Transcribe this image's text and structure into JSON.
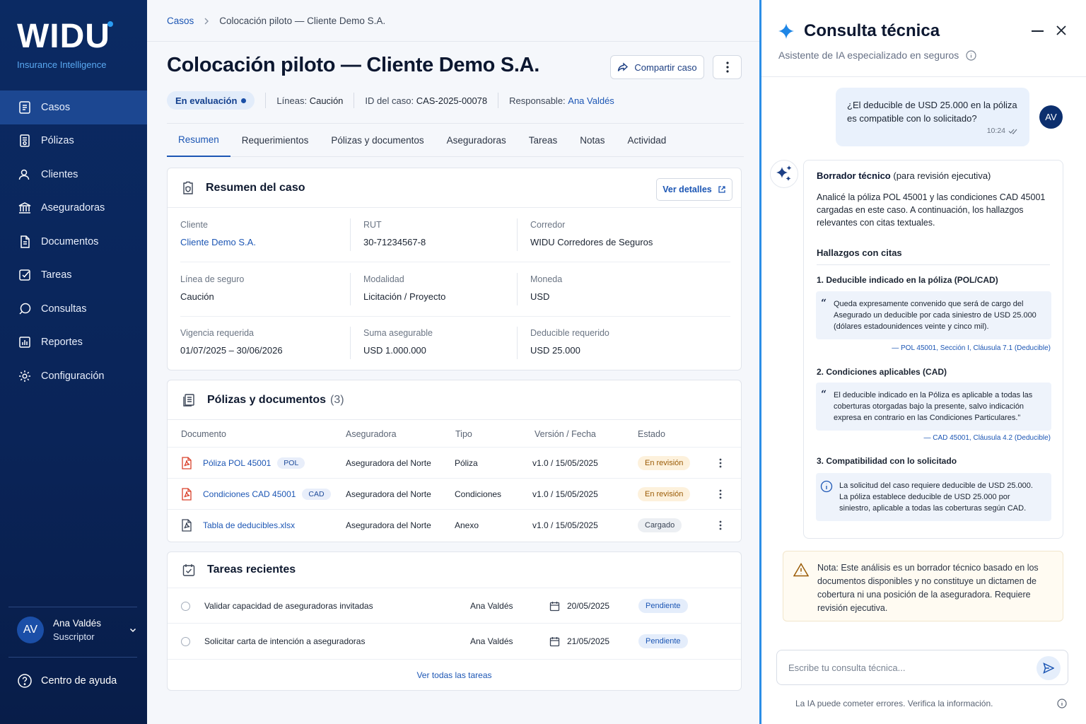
{
  "brand": {
    "name": "WIDU",
    "tagline": "Insurance Intelligence"
  },
  "sidebar": {
    "items": [
      {
        "label": "Casos",
        "icon": "cases-icon",
        "active": true
      },
      {
        "label": "Pólizas",
        "icon": "policies-icon"
      },
      {
        "label": "Clientes",
        "icon": "clients-icon"
      },
      {
        "label": "Aseguradoras",
        "icon": "insurers-icon"
      },
      {
        "label": "Documentos",
        "icon": "documents-icon"
      },
      {
        "label": "Tareas",
        "icon": "tasks-icon"
      },
      {
        "label": "Consultas",
        "icon": "chat-icon"
      },
      {
        "label": "Reportes",
        "icon": "reports-icon"
      },
      {
        "label": "Configuración",
        "icon": "gear-icon"
      }
    ],
    "user": {
      "initials": "AV",
      "name": "Ana Valdés",
      "role": "Suscriptor"
    },
    "help": "Centro de ayuda"
  },
  "breadcrumb": {
    "root": "Casos",
    "current": "Colocación piloto — Cliente Demo S.A."
  },
  "header": {
    "title": "Colocación piloto — Cliente Demo S.A.",
    "share": "Compartir caso",
    "status": "En evaluación",
    "lines_label": "Líneas:",
    "lines_value": "Caución",
    "id_label": "ID del caso:",
    "id_value": "CAS-2025-00078",
    "owner_label": "Responsable:",
    "owner_value": "Ana Valdés"
  },
  "tabs": [
    "Resumen",
    "Requerimientos",
    "Pólizas y documentos",
    "Aseguradoras",
    "Tareas",
    "Notas",
    "Actividad"
  ],
  "summary": {
    "title": "Resumen del caso",
    "details_btn": "Ver detalles",
    "fields": [
      {
        "label": "Cliente",
        "value": "Cliente Demo S.A.",
        "link": true
      },
      {
        "label": "RUT",
        "value": "30-71234567-8"
      },
      {
        "label": "Corredor",
        "value": "WIDU Corredores de Seguros"
      },
      {
        "label": "Línea de seguro",
        "value": "Caución"
      },
      {
        "label": "Modalidad",
        "value": "Licitación / Proyecto"
      },
      {
        "label": "Moneda",
        "value": "USD"
      },
      {
        "label": "Vigencia requerida",
        "value": "01/07/2025 – 30/06/2026"
      },
      {
        "label": "Suma asegurable",
        "value": "USD 1.000.000"
      },
      {
        "label": "Deducible requerido",
        "value": "USD 25.000"
      }
    ]
  },
  "documents": {
    "title": "Pólizas y documentos",
    "count": "(3)",
    "columns": [
      "Documento",
      "Aseguradora",
      "Tipo",
      "Versión / Fecha",
      "Estado"
    ],
    "rows": [
      {
        "name": "Póliza POL 45001",
        "tag": "POL",
        "insurer": "Aseguradora del Norte",
        "type": "Póliza",
        "version": "v1.0 / 15/05/2025",
        "status": "En revisión",
        "icon": "pdf-icon"
      },
      {
        "name": "Condiciones CAD 45001",
        "tag": "CAD",
        "insurer": "Aseguradora del Norte",
        "type": "Condiciones",
        "version": "v1.0 / 15/05/2025",
        "status": "En revisión",
        "icon": "pdf-icon"
      },
      {
        "name": "Tabla de deducibles.xlsx",
        "tag": "",
        "insurer": "Aseguradora del Norte",
        "type": "Anexo",
        "version": "v1.0 / 15/05/2025",
        "status": "Cargado",
        "icon": "file-icon"
      }
    ]
  },
  "tasks": {
    "title": "Tareas recientes",
    "rows": [
      {
        "name": "Validar capacidad de aseguradoras invitadas",
        "owner": "Ana Valdés",
        "date": "20/05/2025",
        "status": "Pendiente"
      },
      {
        "name": "Solicitar carta de intención a aseguradoras",
        "owner": "Ana Valdés",
        "date": "21/05/2025",
        "status": "Pendiente"
      }
    ],
    "see_all": "Ver todas las tareas"
  },
  "assistant": {
    "title": "Consulta técnica",
    "subtitle": "Asistente de IA especializado en seguros",
    "user_message": "¿El deducible de USD 25.000 en la póliza es compatible con lo solicitado?",
    "user_time": "10:24",
    "user_initials": "AV",
    "answer_title": "Borrador técnico",
    "answer_title_suffix": "(para revisión ejecutiva)",
    "answer_intro": "Analicé la póliza POL 45001 y las condiciones CAD 45001 cargadas en este caso. A continuación, los hallazgos relevantes con citas textuales.",
    "findings_title": "Hallazgos con citas",
    "findings": [
      {
        "title": "1. Deducible indicado en la póliza (POL/CAD)",
        "quote": "Queda expresamente convenido que será de cargo del Asegurado un deducible por cada siniestro de USD 25.000 (dólares estadounidences veinte y cinco mil).",
        "cite": "— POL 45001, Sección I, Cláusula 7.1 (Deducible)"
      },
      {
        "title": "2. Condiciones aplicables (CAD)",
        "quote": "El deducible indicado en la Póliza es aplicable a todas las coberturas otorgadas bajo la presente, salvo indicación expresa en contrario en las Condiciones Particulares.”",
        "cite": "— CAD 45001, Cláusula 4.2 (Deducible)"
      },
      {
        "title": "3. Compatibilidad con lo solicitado",
        "quote": "La solicitud del caso requiere deducible de USD 25.000. La póliza establece deducible de USD 25.000 por siniestro, aplicable a todas las coberturas según CAD.",
        "cite": ""
      }
    ],
    "note": "Nota: Este análisis es un borrador técnico basado en los documentos disponibles y no constituye un dictamen de cobertura ni una posición de la aseguradora. Requiere revisión ejecutiva.",
    "input_placeholder": "Escribe tu consulta técnica...",
    "footer": "La IA puede cometer errores. Verifica la información."
  },
  "colors": {
    "sidebar": "#0b2a63",
    "accent": "#1c56b4",
    "panel_border": "#2c8ee6",
    "warning": "#9a5b05"
  }
}
